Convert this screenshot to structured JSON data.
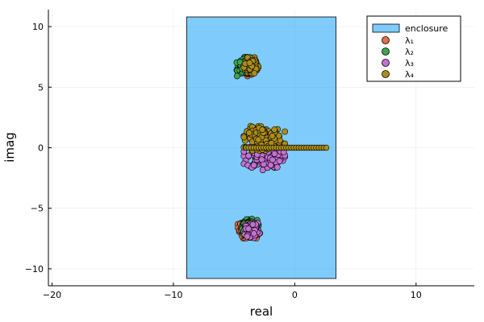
{
  "chart_data": {
    "type": "scatter",
    "xlabel": "real",
    "ylabel": "imag",
    "xlim": [
      -20.3,
      14.8
    ],
    "ylim": [
      -11.4,
      11.4
    ],
    "xticks": [
      -20,
      -10,
      0,
      10
    ],
    "yticks": [
      -10,
      -5,
      0,
      5,
      10
    ],
    "xtick_labels": [
      "−20",
      "−10",
      "0",
      "10"
    ],
    "ytick_labels": [
      "−10",
      "−5",
      "0",
      "5",
      "10"
    ],
    "grid": true,
    "legend_position": "top-right",
    "enclosure": {
      "label": "enclosure",
      "x_min": -8.9,
      "x_max": 3.4,
      "y_min": -10.8,
      "y_max": 10.8,
      "color": "#009AFA"
    },
    "series": [
      {
        "name": "λ₁",
        "color": "#E26F46",
        "clusters": [
          {
            "center": [
              -3.8,
              6.7
            ],
            "spread": [
              0.55,
              0.6
            ]
          },
          {
            "center": [
              -3.9,
              -6.7
            ],
            "spread": [
              0.6,
              0.6
            ]
          }
        ]
      },
      {
        "name": "λ₂",
        "color": "#3EA44E",
        "clusters": [
          {
            "center": [
              -4.0,
              6.7
            ],
            "spread": [
              0.6,
              0.6
            ]
          },
          {
            "center": [
              -3.7,
              -6.6
            ],
            "spread": [
              0.55,
              0.55
            ]
          }
        ]
      },
      {
        "name": "λ₃",
        "color": "#C371D2",
        "clusters": [
          {
            "center": [
              -2.5,
              -0.8
            ],
            "spread": [
              1.3,
              0.8
            ]
          },
          {
            "center": [
              -3.5,
              -6.8
            ],
            "spread": [
              0.5,
              0.5
            ]
          }
        ]
      },
      {
        "name": "λ₄",
        "color": "#AC8D18",
        "clusters": [
          {
            "center": [
              -2.5,
              0.8
            ],
            "spread": [
              1.3,
              0.8
            ]
          },
          {
            "center": [
              -3.6,
              6.8
            ],
            "spread": [
              0.45,
              0.5
            ]
          }
        ],
        "real_axis_line": {
          "x_from": -4.0,
          "x_to": 2.6,
          "y": 0
        }
      }
    ]
  }
}
